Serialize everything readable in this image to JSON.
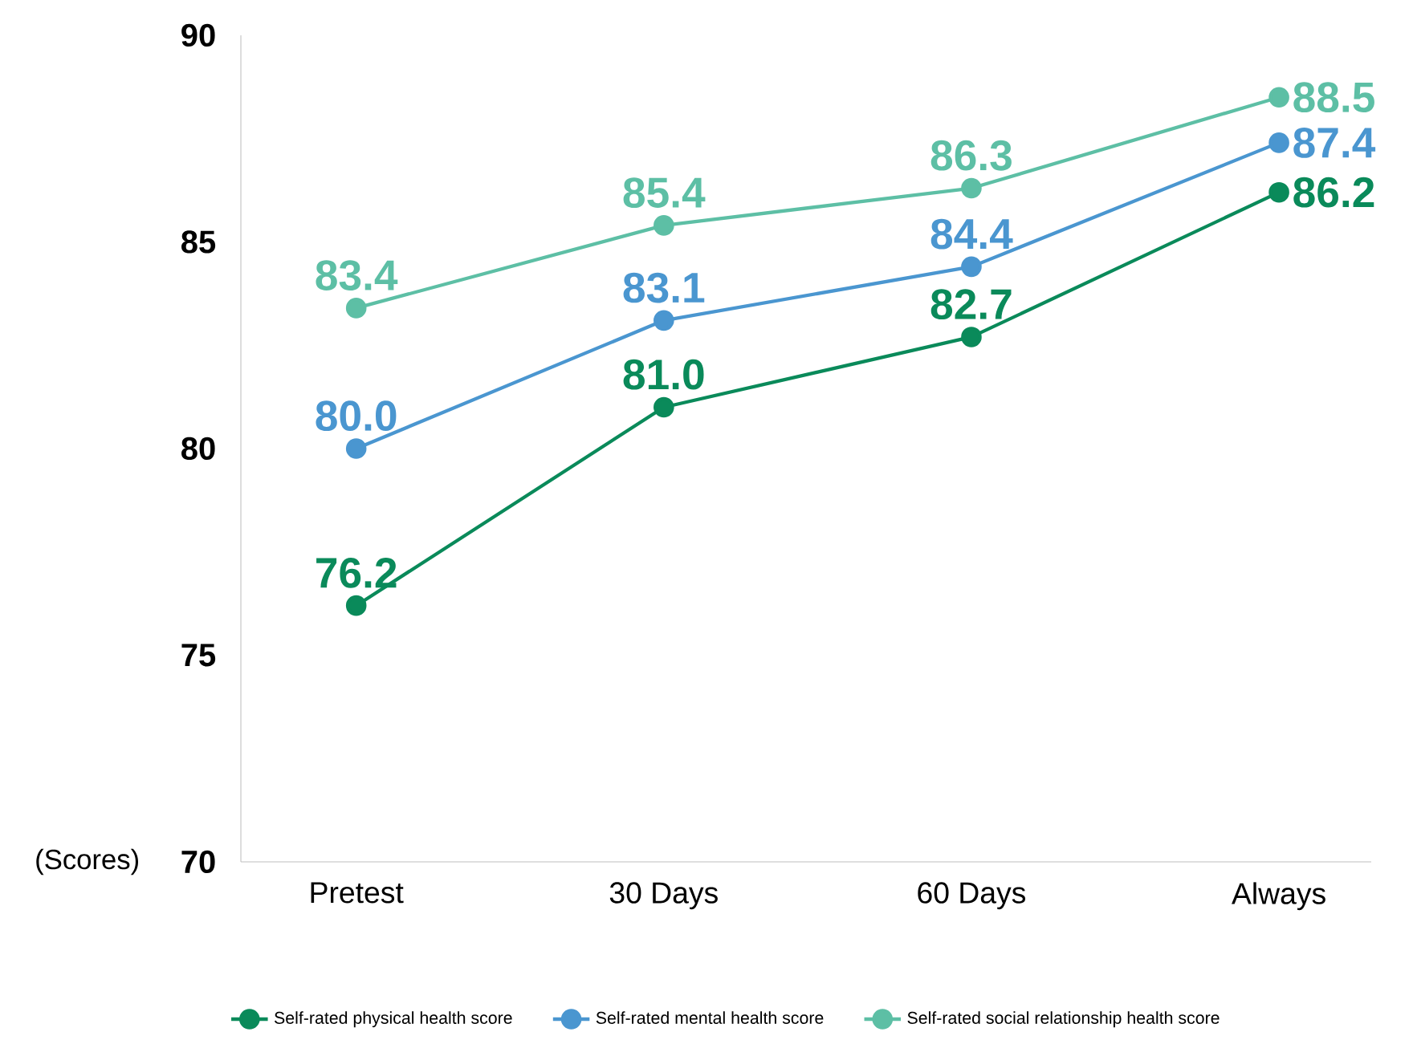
{
  "chart_data": {
    "type": "line",
    "ylabel": "(Scores)",
    "categories": [
      "Pretest",
      "30 Days",
      "60 Days",
      "Always"
    ],
    "ylim": [
      70,
      90
    ],
    "yticks": [
      70,
      75,
      80,
      85,
      90
    ],
    "grid": false,
    "legend": "bottom",
    "marker": "circle",
    "line_style": "solid",
    "series": [
      {
        "name": "Self-rated physical health score",
        "color": "#0a8a5a",
        "values": [
          76.2,
          81.0,
          82.7,
          86.2
        ],
        "value_labels": [
          "76.2",
          "81.0",
          "82.7",
          "86.2"
        ]
      },
      {
        "name": "Self-rated mental health score",
        "color": "#4a96d0",
        "values": [
          80.0,
          83.1,
          84.4,
          87.4
        ],
        "value_labels": [
          "80.0",
          "83.1",
          "84.4",
          "87.4"
        ]
      },
      {
        "name": "Self-rated social relationship health score",
        "color": "#5dbfa5",
        "values": [
          83.4,
          85.4,
          86.3,
          88.5
        ],
        "value_labels": [
          "83.4",
          "85.4",
          "86.3",
          "88.5"
        ]
      }
    ]
  }
}
